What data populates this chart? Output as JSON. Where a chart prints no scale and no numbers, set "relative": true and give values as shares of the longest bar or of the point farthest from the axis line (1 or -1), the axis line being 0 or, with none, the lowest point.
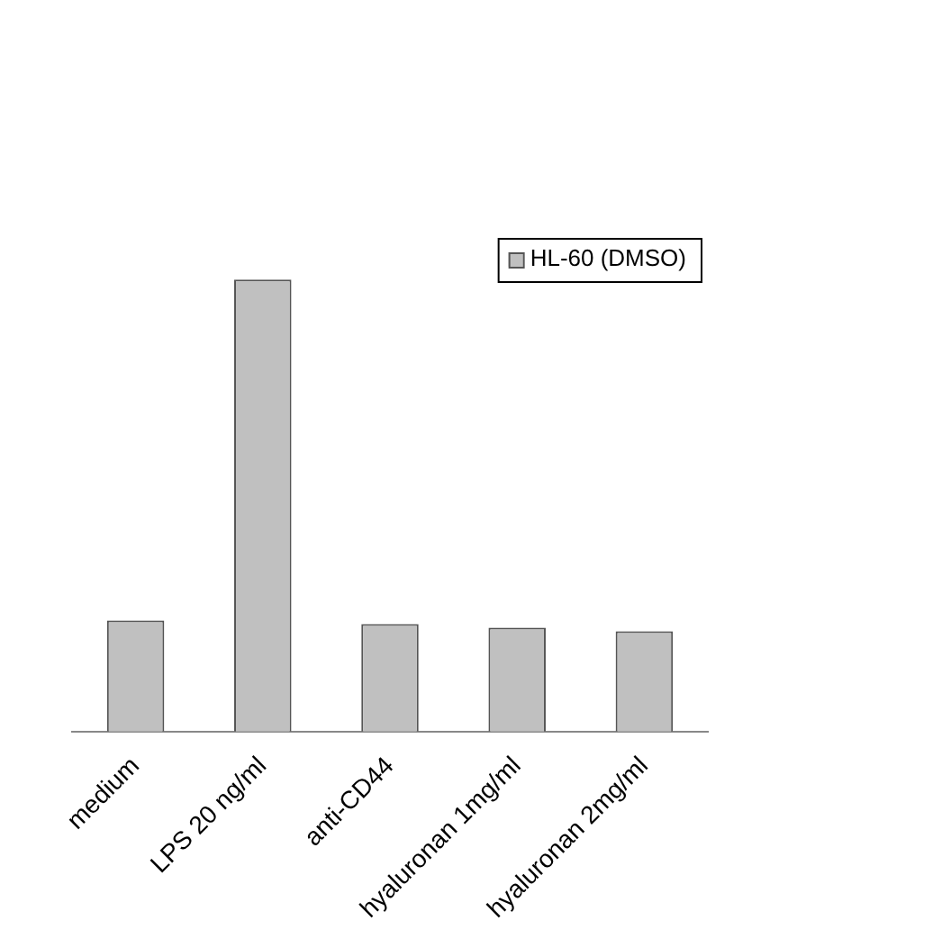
{
  "chart_data": {
    "type": "bar",
    "relative": true,
    "categories": [
      "medium",
      "LPS 20 ng/ml",
      "anti-CD44",
      "hyaluronan 1mg/ml",
      "hyaluronan 2mg/ml"
    ],
    "series": [
      {
        "name": "HL-60 (DMSO)",
        "color": "#c0c0c0",
        "values": [
          0.246,
          1,
          0.238,
          0.23,
          0.222
        ]
      }
    ],
    "legend": "top right",
    "grid": false
  }
}
